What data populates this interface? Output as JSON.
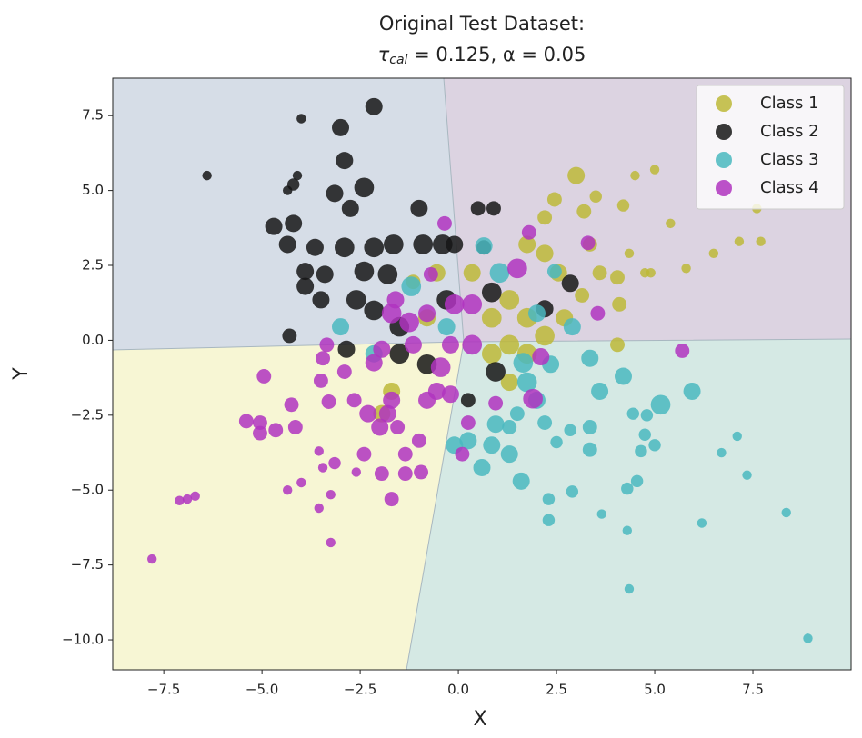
{
  "chart_data": {
    "type": "scatter",
    "title": "Original Test Dataset:",
    "subtitle": [
      "τ",
      "cal",
      " = 0.125, α = 0.05"
    ],
    "x_label": "X",
    "y_label": "Y",
    "xlim": [
      -8.8,
      10.0
    ],
    "ylim": [
      -11.0,
      8.75
    ],
    "xticks": [
      {
        "value": -7.5,
        "label": "−7.5"
      },
      {
        "value": -5.0,
        "label": "−5.0"
      },
      {
        "value": -2.5,
        "label": "−2.5"
      },
      {
        "value": 0,
        "label": "0.0"
      },
      2.5,
      {
        "value": 5.0,
        "label": "5.0"
      },
      7.5
    ],
    "yticks": [
      {
        "value": -10.0,
        "label": "−10.0"
      },
      {
        "value": -7.5,
        "label": "−7.5"
      },
      {
        "value": -5.0,
        "label": "−5.0"
      },
      {
        "value": -2.5,
        "label": "−2.5"
      },
      {
        "value": 0,
        "label": "0.0"
      },
      2.5,
      {
        "value": 5.0,
        "label": "5.0"
      },
      7.5
    ],
    "legend": "upper right",
    "series": [
      {
        "name": "Class 1",
        "color": "#bdb838",
        "x": [
          3.0,
          2.45,
          2.2,
          3.2,
          3.5,
          4.2,
          4.5,
          5.0,
          5.4,
          4.35,
          4.9,
          5.8,
          6.5,
          7.15,
          7.7,
          7.6,
          4.05,
          4.1,
          4.05,
          3.35,
          2.55,
          1.75,
          2.2,
          1.3,
          1.75,
          2.2,
          2.7,
          0.85,
          1.3,
          0.85,
          1.75,
          0.35,
          -0.55,
          -1.15,
          -1.7,
          -1.95,
          1.3,
          -0.8,
          3.6,
          3.15,
          4.75
        ],
        "y": [
          5.5,
          4.7,
          4.1,
          4.3,
          4.8,
          4.5,
          5.5,
          5.7,
          3.9,
          2.9,
          2.25,
          2.4,
          2.9,
          3.3,
          3.3,
          4.4,
          2.1,
          1.2,
          -0.15,
          3.2,
          2.25,
          3.2,
          2.9,
          1.35,
          0.75,
          0.15,
          0.75,
          0.75,
          -0.15,
          -0.45,
          -0.45,
          2.25,
          2.25,
          1.95,
          -1.7,
          -2.45,
          -1.4,
          0.75,
          2.25,
          1.5,
          2.25
        ],
        "sizes": [
          100,
          70,
          70,
          70,
          50,
          50,
          30,
          30,
          30,
          30,
          30,
          30,
          30,
          30,
          30,
          30,
          70,
          70,
          70,
          70,
          100,
          100,
          100,
          130,
          130,
          130,
          100,
          130,
          130,
          130,
          130,
          100,
          100,
          70,
          100,
          100,
          100,
          100,
          70,
          70,
          30
        ]
      },
      {
        "name": "Class 2",
        "color": "#161616",
        "x": [
          -4.0,
          -2.15,
          -3.0,
          -2.9,
          -6.4,
          -4.1,
          -4.35,
          -4.2,
          -3.15,
          -2.4,
          -2.75,
          -1.0,
          -4.7,
          -4.2,
          -4.35,
          -3.65,
          -2.9,
          -2.15,
          -1.65,
          -0.9,
          -0.4,
          -0.1,
          -3.9,
          -3.4,
          -2.4,
          -1.8,
          -3.9,
          -3.5,
          -2.6,
          -2.15,
          -1.5,
          -4.3,
          -2.85,
          -1.5,
          -0.8,
          -0.3,
          0.5,
          0.9,
          0.85,
          0.95,
          0.25,
          2.85,
          2.2,
          0.65
        ],
        "y": [
          7.4,
          7.8,
          7.1,
          6.0,
          5.5,
          5.5,
          5.0,
          5.2,
          4.9,
          5.1,
          4.4,
          4.4,
          3.8,
          3.9,
          3.2,
          3.1,
          3.1,
          3.1,
          3.2,
          3.2,
          3.2,
          3.2,
          2.3,
          2.2,
          2.3,
          2.2,
          1.8,
          1.35,
          1.35,
          1.0,
          0.45,
          0.15,
          -0.3,
          -0.45,
          -0.8,
          1.35,
          4.4,
          4.4,
          1.6,
          -1.05,
          -2.0,
          1.9,
          1.05,
          3.1
        ],
        "sizes": [
          30,
          100,
          100,
          100,
          30,
          30,
          30,
          50,
          100,
          130,
          100,
          100,
          100,
          100,
          100,
          100,
          130,
          130,
          130,
          130,
          130,
          100,
          100,
          100,
          130,
          130,
          100,
          100,
          130,
          130,
          130,
          70,
          100,
          130,
          130,
          130,
          70,
          70,
          130,
          130,
          70,
          100,
          100,
          70
        ]
      },
      {
        "name": "Class 3",
        "color": "#4ab8bf",
        "x": [
          8.9,
          4.35,
          8.35,
          6.2,
          4.3,
          3.65,
          2.3,
          2.3,
          2.9,
          4.3,
          4.55,
          7.35,
          6.7,
          7.1,
          5.0,
          4.65,
          4.75,
          4.8,
          4.45,
          5.15,
          5.95,
          4.2,
          3.6,
          3.35,
          3.35,
          2.85,
          2.5,
          2.2,
          1.6,
          1.3,
          0.6,
          0.85,
          0.25,
          -0.1,
          0.95,
          1.5,
          1.3,
          2.0,
          2.35,
          3.35,
          1.75,
          -1.2,
          -3.0,
          -2.15,
          1.05,
          2.45,
          2.0,
          0.65,
          -0.3,
          2.9,
          1.65
        ],
        "y": [
          -9.95,
          -8.3,
          -5.75,
          -6.1,
          -6.35,
          -5.8,
          -6.0,
          -5.3,
          -5.05,
          -4.95,
          -4.7,
          -4.5,
          -3.75,
          -3.2,
          -3.5,
          -3.7,
          -3.15,
          -2.5,
          -2.45,
          -2.15,
          -1.7,
          -1.2,
          -1.7,
          -2.9,
          -3.65,
          -3.0,
          -3.4,
          -2.75,
          -4.7,
          -3.8,
          -4.25,
          -3.5,
          -3.35,
          -3.5,
          -2.8,
          -2.45,
          -2.9,
          -2.0,
          -0.8,
          -0.6,
          -1.4,
          1.8,
          0.45,
          -0.45,
          2.25,
          2.3,
          0.9,
          3.15,
          0.45,
          0.45,
          -0.75
        ],
        "sizes": [
          30,
          30,
          30,
          30,
          30,
          30,
          50,
          50,
          50,
          50,
          50,
          30,
          30,
          30,
          50,
          50,
          50,
          50,
          50,
          130,
          100,
          100,
          100,
          70,
          70,
          50,
          50,
          70,
          100,
          100,
          100,
          100,
          100,
          100,
          100,
          70,
          70,
          100,
          100,
          100,
          130,
          130,
          100,
          100,
          130,
          70,
          100,
          100,
          100,
          100,
          130
        ]
      },
      {
        "name": "Class 4",
        "color": "#b034c0",
        "x": [
          -7.8,
          -7.1,
          -6.9,
          -6.7,
          -5.4,
          -5.05,
          -4.65,
          -5.05,
          -4.95,
          -4.25,
          -4.15,
          -4.35,
          -4.0,
          -3.55,
          -3.45,
          -3.15,
          -3.55,
          -3.25,
          -3.25,
          -2.6,
          -2.4,
          -1.95,
          -1.7,
          -1.35,
          -0.95,
          -1.35,
          -1.0,
          -1.55,
          -2.0,
          -2.3,
          -1.8,
          -2.65,
          -3.3,
          -3.5,
          -2.9,
          -3.45,
          -3.35,
          -2.15,
          -1.7,
          -0.8,
          -0.45,
          -0.55,
          -0.2,
          0.25,
          0.1,
          0.95,
          1.9,
          2.1,
          5.7,
          3.55,
          3.3,
          1.8,
          1.5,
          -0.35,
          -0.7,
          -1.7,
          -1.25,
          -0.8,
          -0.1,
          0.35,
          0.35,
          -0.2,
          -1.15,
          -1.95,
          -1.6
        ],
        "y": [
          -7.3,
          -5.35,
          -5.3,
          -5.2,
          -2.7,
          -3.1,
          -3.0,
          -2.75,
          -1.2,
          -2.15,
          -2.9,
          -5.0,
          -4.75,
          -3.7,
          -4.25,
          -4.1,
          -5.6,
          -6.75,
          -5.15,
          -4.4,
          -3.8,
          -4.45,
          -5.3,
          -4.45,
          -4.4,
          -3.8,
          -3.35,
          -2.9,
          -2.9,
          -2.45,
          -2.45,
          -2.0,
          -2.05,
          -1.35,
          -1.05,
          -0.6,
          -0.15,
          -0.75,
          -2.0,
          -2.0,
          -0.9,
          -1.7,
          -1.8,
          -2.75,
          -3.8,
          -2.1,
          -1.95,
          -0.55,
          -0.35,
          0.9,
          3.25,
          3.6,
          2.4,
          3.9,
          2.2,
          0.9,
          0.6,
          0.9,
          1.2,
          1.2,
          -0.15,
          -0.15,
          -0.15,
          -0.3,
          1.35
        ],
        "sizes": [
          30,
          30,
          30,
          30,
          70,
          70,
          70,
          70,
          70,
          70,
          70,
          30,
          30,
          30,
          30,
          50,
          30,
          30,
          30,
          30,
          70,
          70,
          70,
          70,
          70,
          70,
          70,
          70,
          100,
          100,
          100,
          70,
          70,
          70,
          70,
          70,
          70,
          100,
          100,
          100,
          130,
          100,
          100,
          70,
          70,
          70,
          130,
          100,
          70,
          70,
          70,
          70,
          130,
          70,
          70,
          130,
          130,
          100,
          130,
          130,
          130,
          100,
          100,
          100,
          100
        ]
      }
    ]
  }
}
